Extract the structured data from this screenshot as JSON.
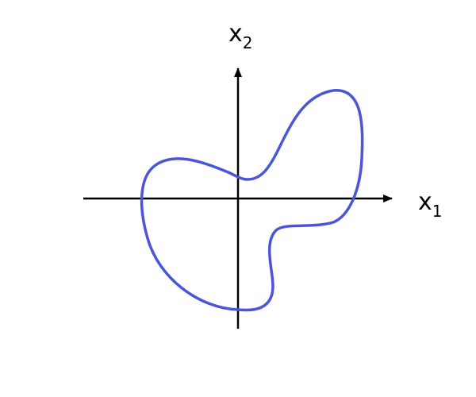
{
  "axes": {
    "x_label": "x",
    "x_subscript": "1",
    "y_label": "x",
    "y_subscript": "2",
    "axis_color": "#000000"
  },
  "curve": {
    "shape": "closed-irregular-blob",
    "stroke_color": "#4a55d9"
  }
}
